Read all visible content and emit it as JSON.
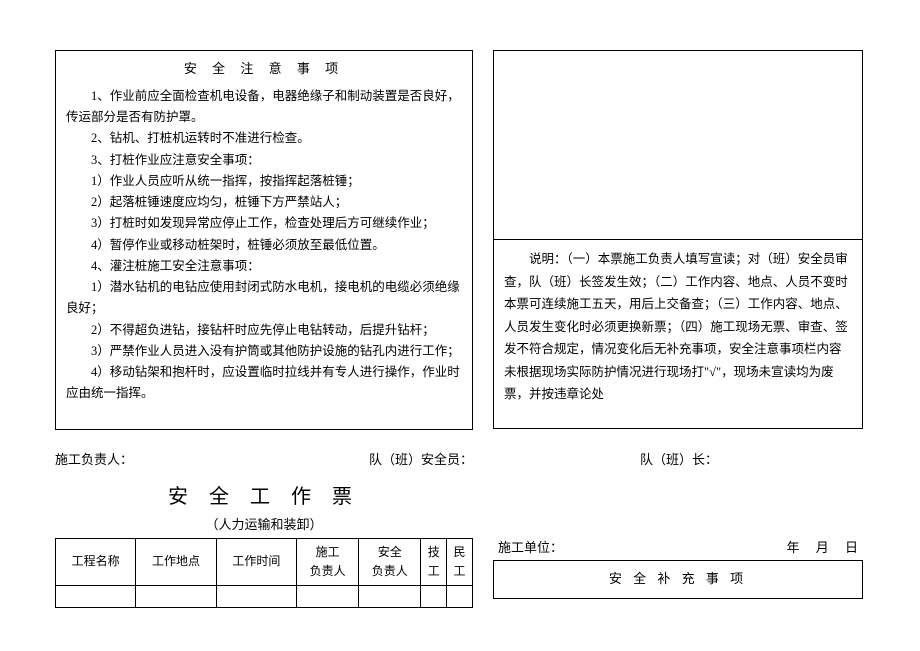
{
  "safety_notes": {
    "title": "安 全 注 意 事 项",
    "items": [
      "1、作业前应全面检查机电设备，电器绝缘子和制动装置是否良好，传运部分是否有防护罩。",
      "2、钻机、打桩机运转时不准进行检查。",
      "3、打桩作业应注意安全事项：",
      "1）作业人员应听从统一指挥，按指挥起落桩锤；",
      "2）起落桩锤速度应均匀，桩锤下方严禁站人；",
      "3）打桩时如发现异常应停止工作，检查处理后方可继续作业；",
      "4）暂停作业或移动桩架时，桩锤必须放至最低位置。",
      "4、灌注桩施工安全注意事项：",
      "1）潜水钻机的电钻应使用封闭式防水电机，接电机的电缆必须绝缘良好；",
      "2）不得超负进钻，接钻杆时应先停止电钻转动，后提升钻杆；",
      "3）严禁作业人员进入没有护筒或其他防护设施的钻孔内进行工作；",
      "4）移动钻架和抱杆时，应设置临时拉线并有专人进行操作，作业时应由统一指挥。"
    ]
  },
  "description": {
    "text": "说明：（一）本票施工负责人填写宣读；对（班）安全员审查，队（班）长签发生效；（二）工作内容、地点、人员不变时本票可连续施工五天，用后上交备查；（三）工作内容、地点、人员发生变化时必须更换新票；（四）施工现场无票、审查、签发不符合规定，情况变化后无补充事项，安全注意事项栏内容未根据现场实际防护情况进行现场打\"√\"，现场未宣读均为废票，并按违章论处"
  },
  "signatures": {
    "construction_leader": "施工负责人：",
    "team_safety": "队（班）安全员：",
    "team_leader": "队（班）长："
  },
  "ticket": {
    "title": "安 全 工 作 票",
    "subtitle": "（人力运输和装卸）",
    "headers": {
      "project": "工程名称",
      "location": "工作地点",
      "time": "工作时间",
      "leader_line1": "施工",
      "leader_line2": "负责人",
      "safety_line1": "安全",
      "safety_line2": "负责人",
      "tech_line1": "技",
      "tech_line2": "工",
      "worker_line1": "民",
      "worker_line2": "工"
    }
  },
  "right_bottom": {
    "unit": "施工单位：",
    "year": "年",
    "month": "月",
    "day": "日",
    "supp_title": "安 全 补 充 事 项"
  }
}
